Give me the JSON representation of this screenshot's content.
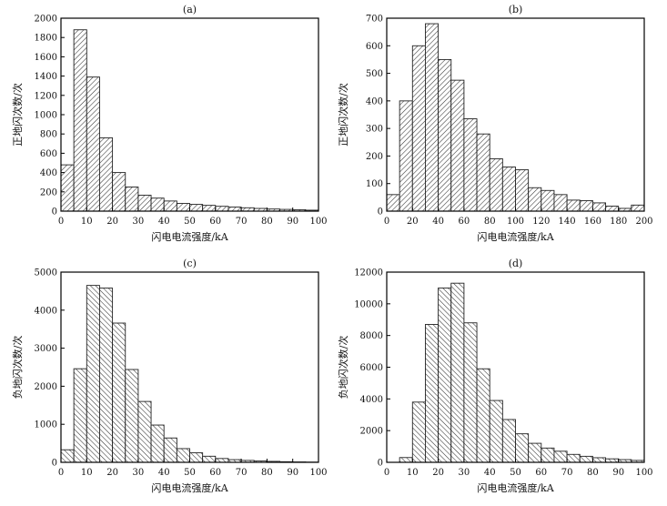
{
  "colors": {
    "bar_fill": "#ffffff",
    "bar_stroke": "#222222",
    "hatch": "#333333",
    "axis": "#000000"
  },
  "chart_data": [
    {
      "type": "bar",
      "title": "(a)",
      "xlabel": "闪电电流强度/kA",
      "ylabel": "正地闪次数/次",
      "xlim": [
        0,
        100
      ],
      "ylim": [
        0,
        2000
      ],
      "xticks": [
        0,
        10,
        20,
        30,
        40,
        50,
        60,
        70,
        80,
        90,
        100
      ],
      "yticks": [
        0,
        200,
        400,
        600,
        800,
        1000,
        1200,
        1400,
        1600,
        1800,
        2000
      ],
      "bin_width": 5,
      "bin_starts": [
        0,
        5,
        10,
        15,
        20,
        25,
        30,
        35,
        40,
        45,
        50,
        55,
        60,
        65,
        70,
        75,
        80,
        85,
        90,
        95
      ],
      "values": [
        480,
        1880,
        1390,
        760,
        400,
        250,
        165,
        135,
        105,
        80,
        70,
        60,
        50,
        42,
        35,
        28,
        22,
        18,
        15,
        10
      ],
      "hatch": "down"
    },
    {
      "type": "bar",
      "title": "(b)",
      "xlabel": "闪电电流强度/kA",
      "ylabel": "正地闪次数/次",
      "xlim": [
        0,
        200
      ],
      "ylim": [
        0,
        700
      ],
      "xticks": [
        0,
        20,
        40,
        60,
        80,
        100,
        120,
        140,
        160,
        180,
        200
      ],
      "yticks": [
        0,
        100,
        200,
        300,
        400,
        500,
        600,
        700
      ],
      "bin_width": 10,
      "bin_starts": [
        0,
        10,
        20,
        30,
        40,
        50,
        60,
        70,
        80,
        90,
        100,
        110,
        120,
        130,
        140,
        150,
        160,
        170,
        180,
        190
      ],
      "values": [
        60,
        400,
        600,
        680,
        550,
        475,
        335,
        280,
        190,
        160,
        150,
        85,
        75,
        60,
        40,
        38,
        30,
        18,
        10,
        22
      ],
      "hatch": "down"
    },
    {
      "type": "bar",
      "title": "(c)",
      "xlabel": "闪电电流强度/kA",
      "ylabel": "负地闪次数/次",
      "xlim": [
        0,
        100
      ],
      "ylim": [
        0,
        5000
      ],
      "xticks": [
        0,
        10,
        20,
        30,
        40,
        50,
        60,
        70,
        80,
        90,
        100
      ],
      "yticks": [
        0,
        1000,
        2000,
        3000,
        4000,
        5000
      ],
      "bin_width": 5,
      "bin_starts": [
        0,
        5,
        10,
        15,
        20,
        25,
        30,
        35,
        40,
        45,
        50,
        55,
        60,
        65,
        70,
        75,
        80,
        85,
        90,
        95
      ],
      "values": [
        330,
        2460,
        4650,
        4580,
        3660,
        2440,
        1600,
        980,
        640,
        360,
        250,
        160,
        100,
        70,
        50,
        35,
        25,
        15,
        10,
        6
      ],
      "hatch": "up"
    },
    {
      "type": "bar",
      "title": "(d)",
      "xlabel": "闪电电流强度/kA",
      "ylabel": "负地闪次数/次",
      "xlim": [
        0,
        100
      ],
      "ylim": [
        0,
        12000
      ],
      "xticks": [
        0,
        10,
        20,
        30,
        40,
        50,
        60,
        70,
        80,
        90,
        100
      ],
      "yticks": [
        0,
        2000,
        4000,
        6000,
        8000,
        10000,
        12000
      ],
      "bin_width": 5,
      "bin_starts": [
        0,
        5,
        10,
        15,
        20,
        25,
        30,
        35,
        40,
        45,
        50,
        55,
        60,
        65,
        70,
        75,
        80,
        85,
        90,
        95
      ],
      "values": [
        0,
        300,
        3800,
        8700,
        11000,
        11300,
        8800,
        5900,
        3900,
        2700,
        1800,
        1200,
        900,
        700,
        500,
        380,
        290,
        220,
        170,
        120
      ],
      "hatch": "up"
    }
  ]
}
